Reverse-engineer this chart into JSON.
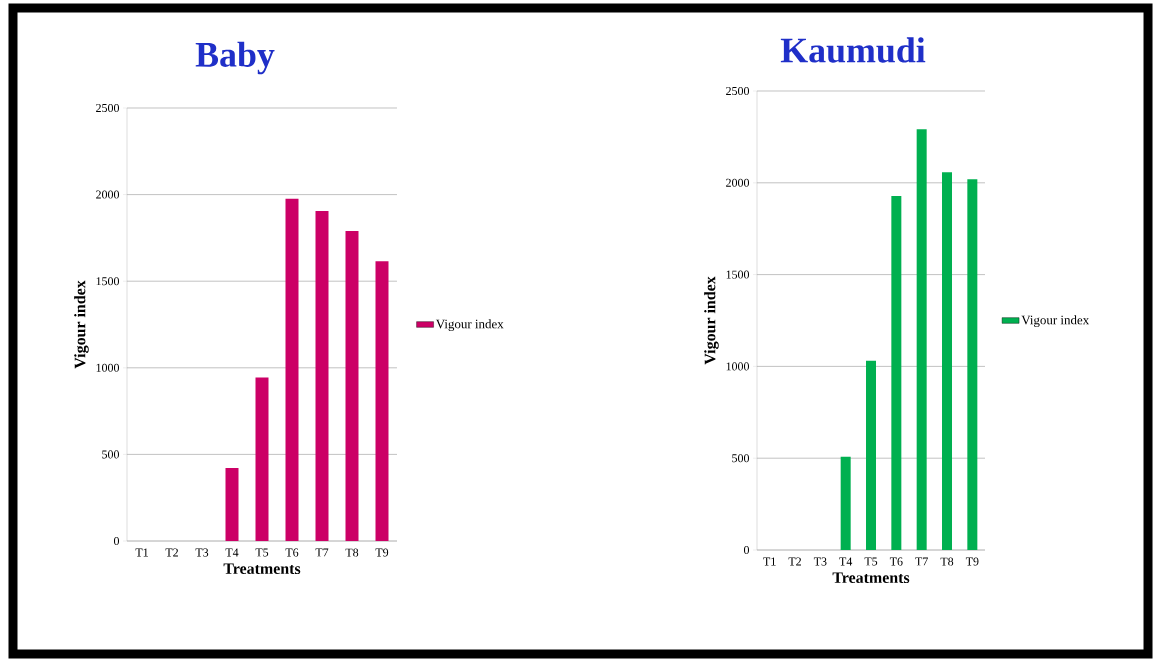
{
  "chart_data": [
    {
      "type": "bar",
      "title": "Baby",
      "xlabel": "Treatments",
      "ylabel": "Vigour index",
      "categories": [
        "T1",
        "T2",
        "T3",
        "T4",
        "T5",
        "T6",
        "T7",
        "T8",
        "T9"
      ],
      "series": [
        {
          "name": "Vigour index",
          "color": "#cc0066",
          "values": [
            0,
            0,
            0,
            422,
            944,
            1976,
            1905,
            1790,
            1615
          ]
        }
      ],
      "ylim": [
        0,
        2500
      ],
      "yticks": [
        0,
        500,
        1000,
        1500,
        2000,
        2500
      ],
      "grid": "y",
      "legend": "right"
    },
    {
      "type": "bar",
      "title": "Kaumudi",
      "xlabel": "Treatments",
      "ylabel": "Vigour index",
      "categories": [
        "T1",
        "T2",
        "T3",
        "T4",
        "T5",
        "T6",
        "T7",
        "T8",
        "T9"
      ],
      "series": [
        {
          "name": "Vigour index",
          "color": "#00b050",
          "values": [
            0,
            0,
            0,
            508,
            1031,
            1928,
            2291,
            2057,
            2019
          ]
        }
      ],
      "ylim": [
        0,
        2500
      ],
      "yticks": [
        0,
        500,
        1000,
        1500,
        2000,
        2500
      ],
      "grid": "y",
      "legend": "right"
    }
  ]
}
